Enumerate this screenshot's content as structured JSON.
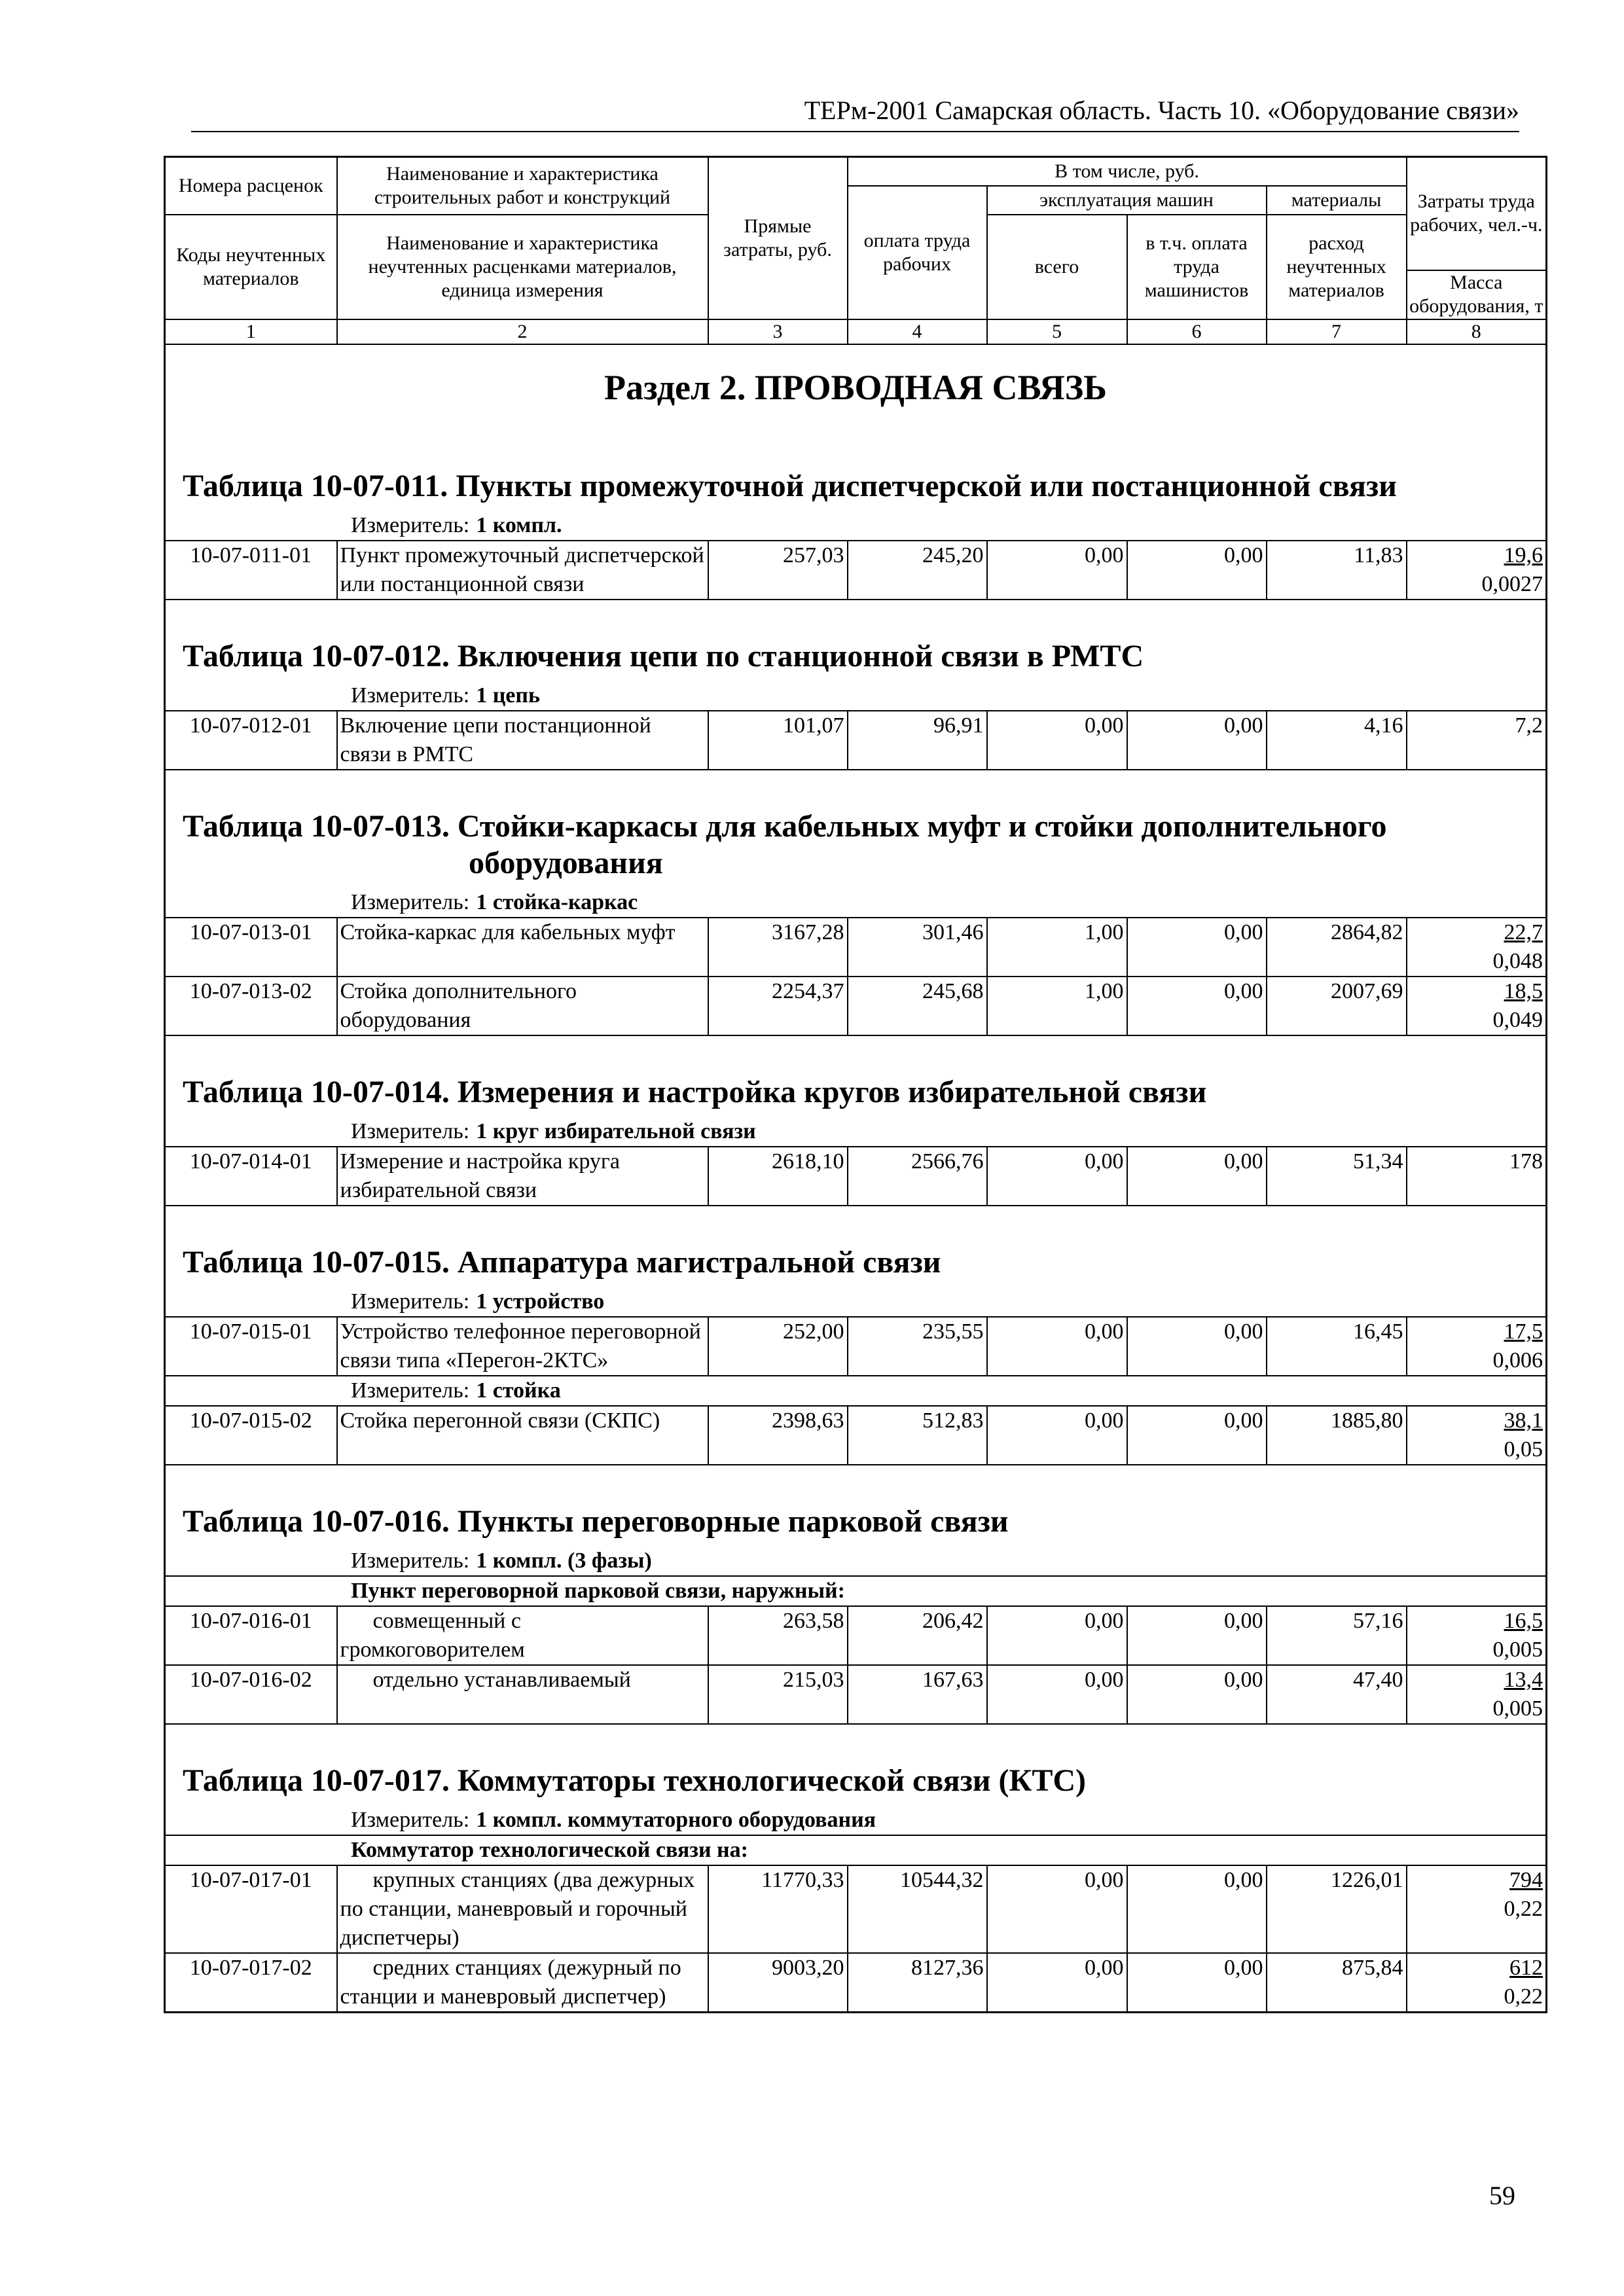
{
  "header": {
    "running_title": "ТЕРм-2001 Самарская область. Часть 10. «Оборудование связи»",
    "page_number": "59"
  },
  "table_header": {
    "rate_numbers": "Номера расценок",
    "work_name": "Наименование и характеристика строительных работ и конструкций",
    "direct_costs": "Прямые затраты, руб.",
    "including": "В том числе, руб.",
    "labor_costs": "Затраты труда рабочих, чел.-ч.",
    "wages": "оплата труда рабочих",
    "machines": "эксплуатация машин",
    "materials": "материалы",
    "material_codes": "Коды неучтенных материалов",
    "material_name": "Наименование и характеристика неучтенных расценками материалов, единица измерения",
    "machines_total": "всего",
    "machinists_wages": "в т.ч. оплата труда машинистов",
    "materials_use": "расход неучтенных материалов",
    "equipment_mass": "Масса оборудования, т",
    "column_numbers": [
      "1",
      "2",
      "3",
      "4",
      "5",
      "6",
      "7",
      "8"
    ]
  },
  "section_title": "Раздел 2. ПРОВОДНАЯ СВЯЗЬ",
  "tables": [
    {
      "title": "Таблица 10-07-011. Пункты промежуточной диспетчерской или постанционной связи",
      "groups": [
        {
          "measure_label": "Измеритель:",
          "measure": "1 компл.",
          "rows": [
            {
              "code": "10-07-011-01",
              "name": "Пункт промежуточный диспетчерской или постанционной связи",
              "direct": "257,03",
              "wages": "245,20",
              "machines": "0,00",
              "machinists": "0,00",
              "materials": "11,83",
              "labor": "19,6",
              "mass": "0,0027"
            }
          ]
        }
      ]
    },
    {
      "title": "Таблица 10-07-012. Включения цепи по станционной связи в РМТС",
      "groups": [
        {
          "measure_label": "Измеритель:",
          "measure": "1 цепь",
          "rows": [
            {
              "code": "10-07-012-01",
              "name": "Включение цепи постанционной связи в РМТС",
              "direct": "101,07",
              "wages": "96,91",
              "machines": "0,00",
              "machinists": "0,00",
              "materials": "4,16",
              "labor": "7,2"
            }
          ]
        }
      ]
    },
    {
      "title": "Таблица 10-07-013. Стойки-каркасы для кабельных муфт и стойки дополнительного оборудования",
      "groups": [
        {
          "measure_label": "Измеритель:",
          "measure": "1 стойка-каркас",
          "rows": [
            {
              "code": "10-07-013-01",
              "name": "Стойка-каркас для кабельных муфт",
              "direct": "3167,28",
              "wages": "301,46",
              "machines": "1,00",
              "machinists": "0,00",
              "materials": "2864,82",
              "labor": "22,7",
              "mass": "0,048"
            },
            {
              "code": "10-07-013-02",
              "name": "Стойка дополнительного оборудования",
              "direct": "2254,37",
              "wages": "245,68",
              "machines": "1,00",
              "machinists": "0,00",
              "materials": "2007,69",
              "labor": "18,5",
              "mass": "0,049"
            }
          ]
        }
      ]
    },
    {
      "title": "Таблица 10-07-014. Измерения и настройка кругов избирательной связи",
      "groups": [
        {
          "measure_label": "Измеритель:",
          "measure": "1 круг избирательной связи",
          "rows": [
            {
              "code": "10-07-014-01",
              "name": "Измерение и настройка круга избирательной связи",
              "direct": "2618,10",
              "wages": "2566,76",
              "machines": "0,00",
              "machinists": "0,00",
              "materials": "51,34",
              "labor": "178"
            }
          ]
        }
      ]
    },
    {
      "title": "Таблица 10-07-015. Аппаратура магистральной связи",
      "groups": [
        {
          "measure_label": "Измеритель:",
          "measure": "1 устройство",
          "rows": [
            {
              "code": "10-07-015-01",
              "name": "Устройство телефонное переговорной связи типа «Перегон-2КТС»",
              "direct": "252,00",
              "wages": "235,55",
              "machines": "0,00",
              "machinists": "0,00",
              "materials": "16,45",
              "labor": "17,5",
              "mass": "0,006"
            }
          ]
        },
        {
          "measure_label": "Измеритель:",
          "measure": "1 стойка",
          "rows": [
            {
              "code": "10-07-015-02",
              "name": "Стойка перегонной связи (СКПС)",
              "direct": "2398,63",
              "wages": "512,83",
              "machines": "0,00",
              "machinists": "0,00",
              "materials": "1885,80",
              "labor": "38,1",
              "mass": "0,05"
            }
          ]
        }
      ]
    },
    {
      "title": "Таблица 10-07-016. Пункты переговорные парковой связи",
      "groups": [
        {
          "measure_label": "Измеритель:",
          "measure": "1 компл. (3 фазы)",
          "subheading": "Пункт переговорной парковой связи, наружный:",
          "rows": [
            {
              "code": "10-07-016-01",
              "name": "совмещенный с громкоговорителем",
              "direct": "263,58",
              "wages": "206,42",
              "machines": "0,00",
              "machinists": "0,00",
              "materials": "57,16",
              "labor": "16,5",
              "mass": "0,005"
            },
            {
              "code": "10-07-016-02",
              "name": "отдельно устанавливаемый",
              "direct": "215,03",
              "wages": "167,63",
              "machines": "0,00",
              "machinists": "0,00",
              "materials": "47,40",
              "labor": "13,4",
              "mass": "0,005"
            }
          ]
        }
      ]
    },
    {
      "title": "Таблица 10-07-017. Коммутаторы технологической связи (КТС)",
      "groups": [
        {
          "measure_label": "Измеритель:",
          "measure": "1 компл. коммутаторного оборудования",
          "subheading": "Коммутатор технологической связи на:",
          "rows": [
            {
              "code": "10-07-017-01",
              "name": "крупных станциях (два дежурных по станции, маневровый и горочный диспетчеры)",
              "direct": "11770,33",
              "wages": "10544,32",
              "machines": "0,00",
              "machinists": "0,00",
              "materials": "1226,01",
              "labor": "794",
              "mass": "0,22"
            },
            {
              "code": "10-07-017-02",
              "name": "средних станциях (дежурный по станции и маневровый диспетчер)",
              "direct": "9003,20",
              "wages": "8127,36",
              "machines": "0,00",
              "machinists": "0,00",
              "materials": "875,84",
              "labor": "612",
              "mass": "0,22"
            }
          ]
        }
      ]
    }
  ]
}
